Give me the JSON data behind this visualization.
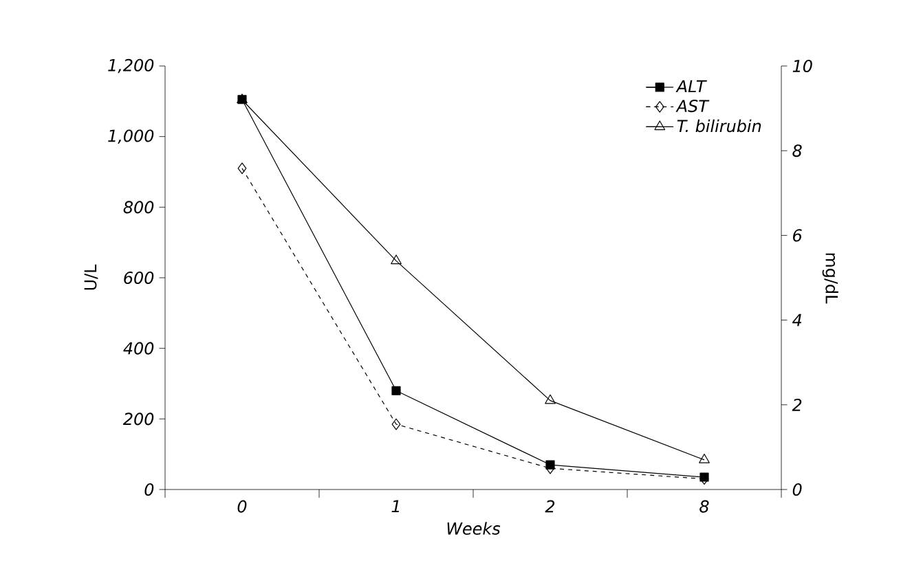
{
  "chart_data": {
    "type": "line",
    "xlabel": "Weeks",
    "ylabel": "U/L",
    "y2label": "mg/dL",
    "categories": [
      "0",
      "1",
      "2",
      "8"
    ],
    "series": [
      {
        "name": "ALT",
        "color": "#000000",
        "values": [
          1105,
          280,
          70,
          35
        ],
        "marker": "square",
        "line_style": "solid"
      },
      {
        "name": "AST",
        "color": "#000000",
        "values": [
          910,
          185,
          60,
          30
        ],
        "marker": "diamond",
        "line_style": "dashed"
      },
      {
        "name": "T. bilirubin",
        "color": "#000000",
        "values": [
          9.2,
          5.4,
          2.1,
          0.7
        ],
        "marker": "triangle",
        "line_style": "solid",
        "axis": "y2"
      }
    ],
    "ylim": [
      0,
      1200
    ],
    "yticks": [
      0,
      200,
      400,
      600,
      800,
      {
        "value": 1000,
        "label": "1,000"
      },
      {
        "value": 1200,
        "label": "1,200"
      }
    ],
    "y2lim": [
      0,
      10
    ],
    "y2ticks": [
      0,
      2,
      4,
      6,
      8,
      10
    ],
    "legend": "top right"
  }
}
